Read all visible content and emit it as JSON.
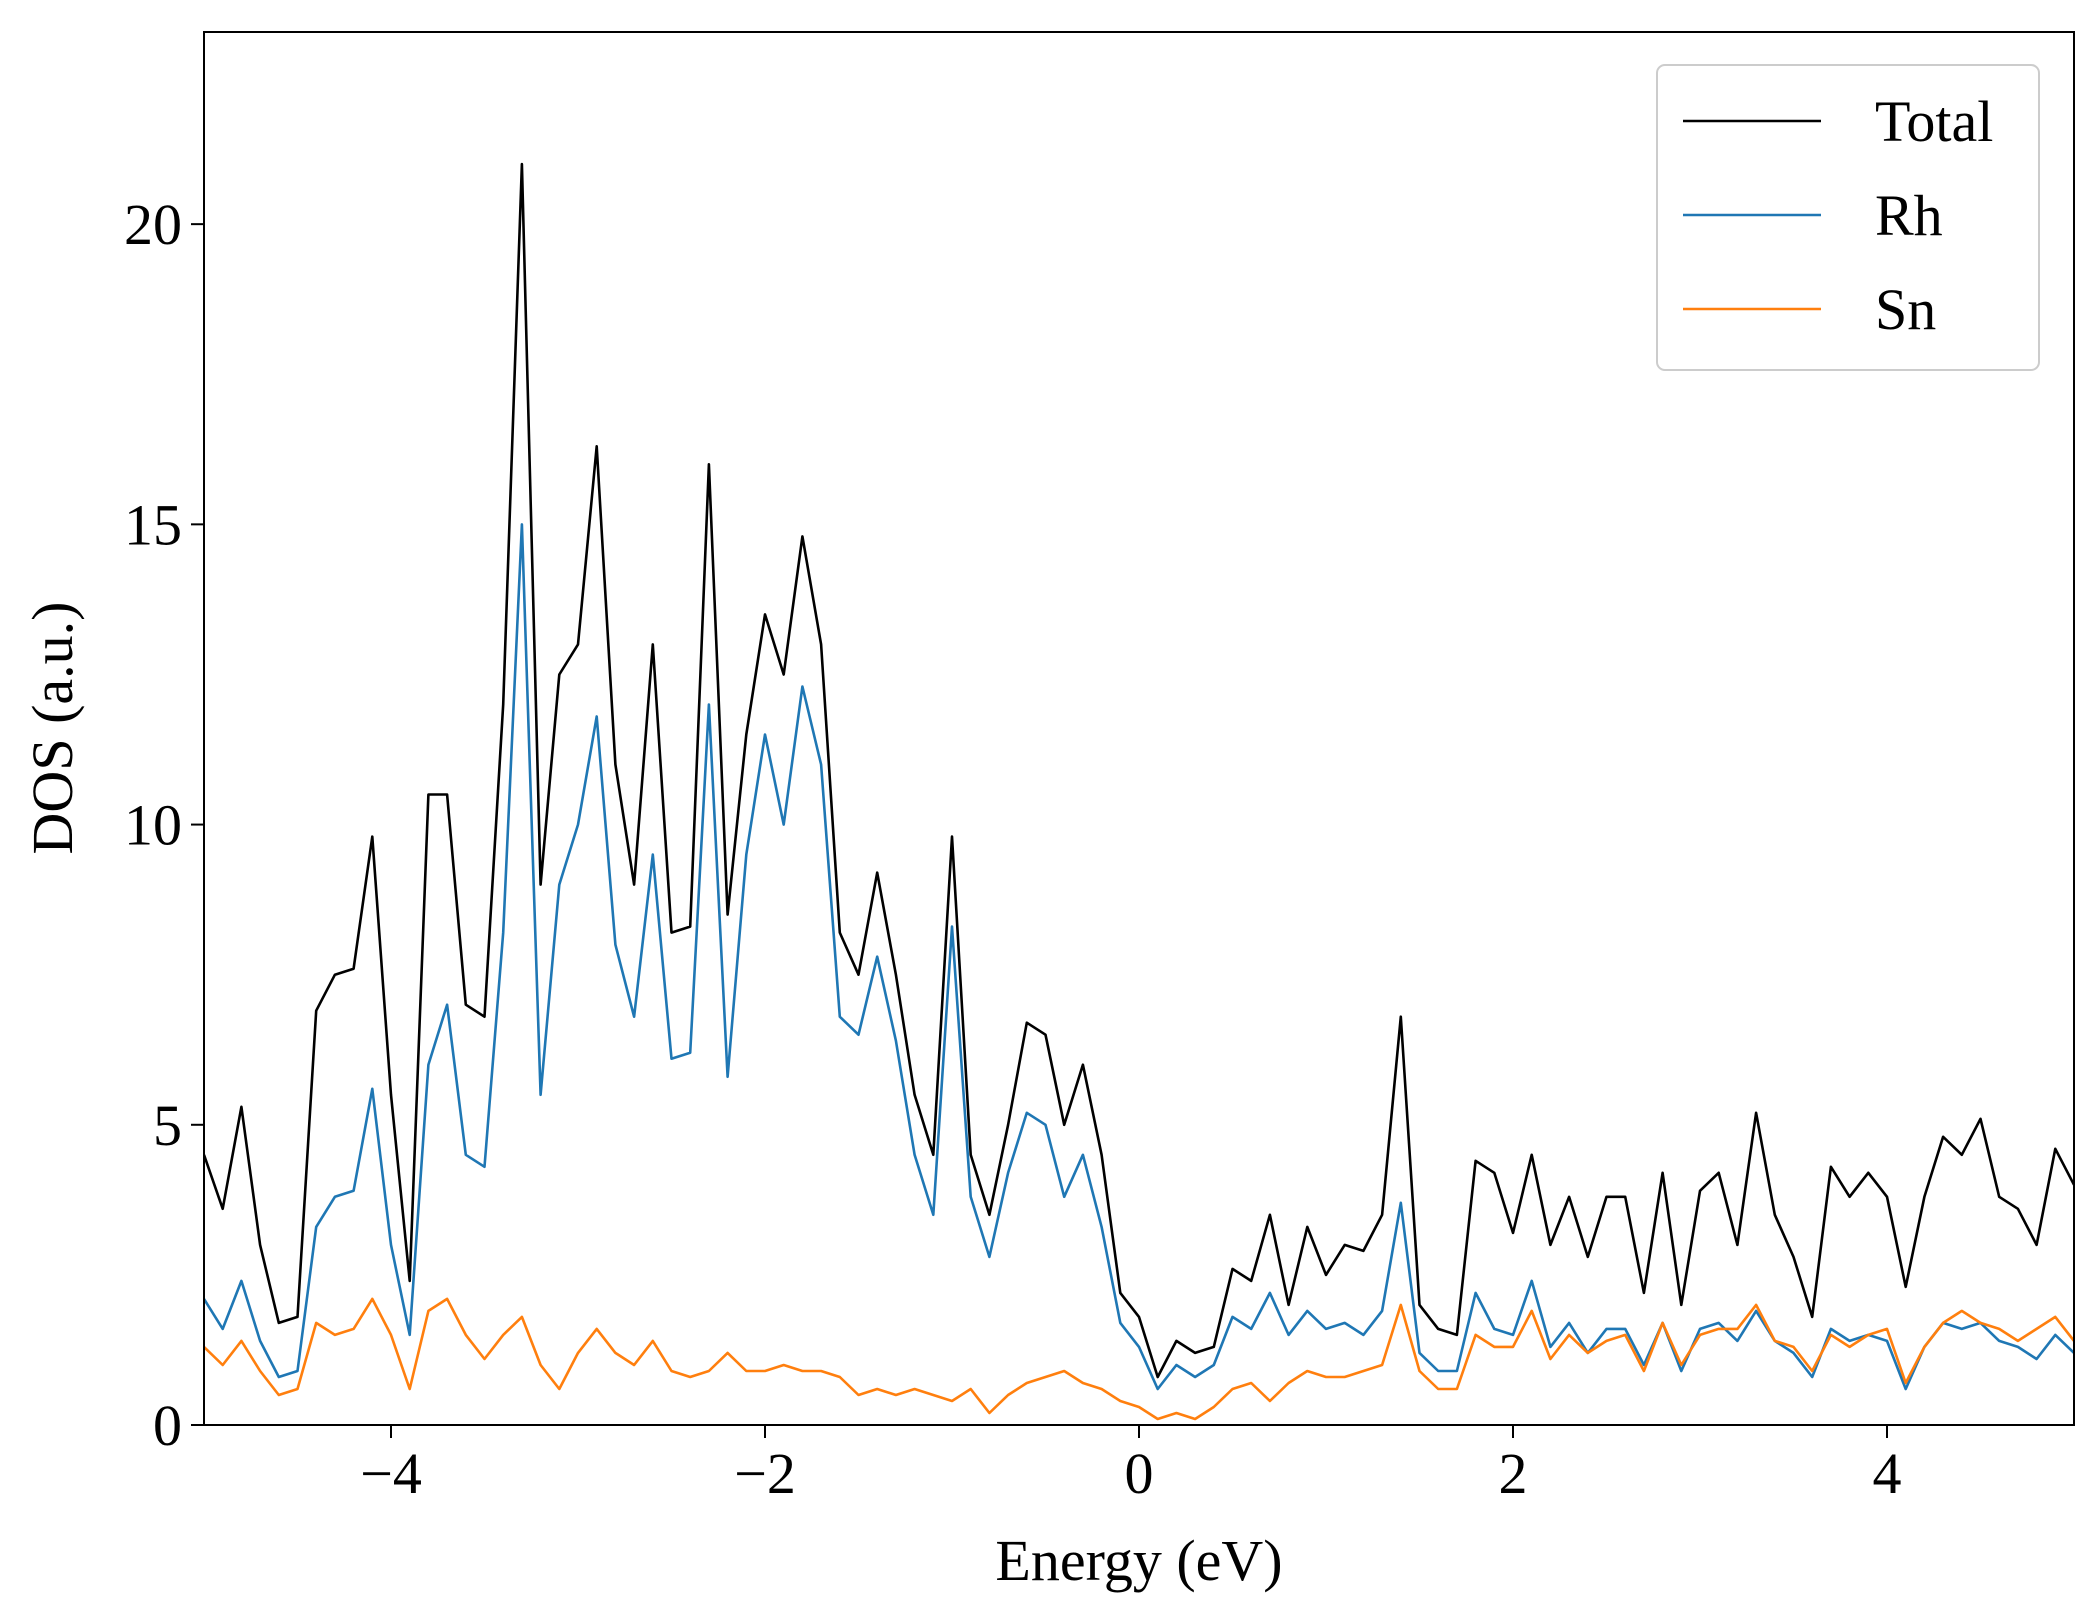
{
  "chart_data": {
    "type": "line",
    "xlabel": "Energy (eV)",
    "ylabel": "DOS (a.u.)",
    "x": [
      -5,
      -4.9,
      -4.8,
      -4.7,
      -4.6,
      -4.5,
      -4.4,
      -4.3,
      -4.2,
      -4.1,
      -4,
      -3.9,
      -3.8,
      -3.7,
      -3.6,
      -3.5,
      -3.4,
      -3.3,
      -3.2,
      -3.1,
      -3,
      -2.9,
      -2.8,
      -2.7,
      -2.6,
      -2.5,
      -2.4,
      -2.3,
      -2.2,
      -2.1,
      -2,
      -1.9,
      -1.8,
      -1.7,
      -1.6,
      -1.5,
      -1.4,
      -1.3,
      -1.2,
      -1.1,
      -1,
      -0.9,
      -0.8,
      -0.7,
      -0.6,
      -0.5,
      -0.4,
      -0.3,
      -0.2,
      -0.1,
      0,
      0.1,
      0.2,
      0.3,
      0.4,
      0.5,
      0.6,
      0.7,
      0.8,
      0.9,
      1,
      1.1,
      1.2,
      1.3,
      1.4,
      1.5,
      1.6,
      1.7,
      1.8,
      1.9,
      2,
      2.1,
      2.2,
      2.3,
      2.4,
      2.5,
      2.6,
      2.7,
      2.8,
      2.9,
      3,
      3.1,
      3.2,
      3.3,
      3.4,
      3.5,
      3.6,
      3.7,
      3.8,
      3.9,
      4,
      4.1,
      4.2,
      4.3,
      4.4,
      4.5,
      4.6,
      4.7,
      4.8,
      4.9,
      5
    ],
    "series": [
      {
        "name": "Total",
        "color": "#000000",
        "values": [
          4.5,
          3.6,
          5.3,
          3.0,
          1.7,
          1.8,
          6.9,
          7.5,
          7.6,
          9.8,
          5.5,
          2.4,
          10.5,
          10.5,
          7.0,
          6.8,
          12.0,
          21.0,
          9.0,
          12.5,
          13.0,
          16.3,
          11.0,
          9.0,
          13.0,
          8.2,
          8.3,
          16.0,
          8.5,
          11.5,
          13.5,
          12.5,
          14.8,
          13.0,
          8.2,
          7.5,
          9.2,
          7.5,
          5.5,
          4.5,
          9.8,
          4.5,
          3.5,
          5.0,
          6.7,
          6.5,
          5.0,
          6.0,
          4.5,
          2.2,
          1.8,
          0.8,
          1.4,
          1.2,
          1.3,
          2.6,
          2.4,
          3.5,
          2.0,
          3.3,
          2.5,
          3.0,
          2.9,
          3.5,
          6.8,
          2.0,
          1.6,
          1.5,
          4.4,
          4.2,
          3.2,
          4.5,
          3.0,
          3.8,
          2.8,
          3.8,
          3.8,
          2.2,
          4.2,
          2.0,
          3.9,
          4.2,
          3.0,
          5.2,
          3.5,
          2.8,
          1.8,
          4.3,
          3.8,
          4.2,
          3.8,
          2.3,
          3.8,
          4.8,
          4.5,
          5.1,
          3.8,
          3.6,
          3.0,
          4.6,
          4.0
        ]
      },
      {
        "name": "Rh",
        "color": "#1f77b4",
        "values": [
          2.1,
          1.6,
          2.4,
          1.4,
          0.8,
          0.9,
          3.3,
          3.8,
          3.9,
          5.6,
          3.0,
          1.5,
          6.0,
          7.0,
          4.5,
          4.3,
          8.2,
          15.0,
          5.5,
          9.0,
          10.0,
          11.8,
          8.0,
          6.8,
          9.5,
          6.1,
          6.2,
          12.0,
          5.8,
          9.5,
          11.5,
          10.0,
          12.3,
          11.0,
          6.8,
          6.5,
          7.8,
          6.4,
          4.5,
          3.5,
          8.3,
          3.8,
          2.8,
          4.2,
          5.2,
          5.0,
          3.8,
          4.5,
          3.3,
          1.7,
          1.3,
          0.6,
          1.0,
          0.8,
          1.0,
          1.8,
          1.6,
          2.2,
          1.5,
          1.9,
          1.6,
          1.7,
          1.5,
          1.9,
          3.7,
          1.2,
          0.9,
          0.9,
          2.2,
          1.6,
          1.5,
          2.4,
          1.3,
          1.7,
          1.2,
          1.6,
          1.6,
          1.0,
          1.7,
          0.9,
          1.6,
          1.7,
          1.4,
          1.9,
          1.4,
          1.2,
          0.8,
          1.6,
          1.4,
          1.5,
          1.4,
          0.6,
          1.3,
          1.7,
          1.6,
          1.7,
          1.4,
          1.3,
          1.1,
          1.5,
          1.2
        ]
      },
      {
        "name": "Sn",
        "color": "#ff7f0e",
        "values": [
          1.3,
          1.0,
          1.4,
          0.9,
          0.5,
          0.6,
          1.7,
          1.5,
          1.6,
          2.1,
          1.5,
          0.6,
          1.9,
          2.1,
          1.5,
          1.1,
          1.5,
          1.8,
          1.0,
          0.6,
          1.2,
          1.6,
          1.2,
          1.0,
          1.4,
          0.9,
          0.8,
          0.9,
          1.2,
          0.9,
          0.9,
          1.0,
          0.9,
          0.9,
          0.8,
          0.5,
          0.6,
          0.5,
          0.6,
          0.5,
          0.4,
          0.6,
          0.2,
          0.5,
          0.7,
          0.8,
          0.9,
          0.7,
          0.6,
          0.4,
          0.3,
          0.1,
          0.2,
          0.1,
          0.3,
          0.6,
          0.7,
          0.4,
          0.7,
          0.9,
          0.8,
          0.8,
          0.9,
          1.0,
          2.0,
          0.9,
          0.6,
          0.6,
          1.5,
          1.3,
          1.3,
          1.9,
          1.1,
          1.5,
          1.2,
          1.4,
          1.5,
          0.9,
          1.7,
          1.0,
          1.5,
          1.6,
          1.6,
          2.0,
          1.4,
          1.3,
          0.9,
          1.5,
          1.3,
          1.5,
          1.6,
          0.7,
          1.3,
          1.7,
          1.9,
          1.7,
          1.6,
          1.4,
          1.6,
          1.8,
          1.4
        ]
      }
    ],
    "xlim": [
      -5,
      5
    ],
    "xticks": [
      {
        "value": -4,
        "label": "−4"
      },
      {
        "value": -2,
        "label": "−2"
      },
      0,
      2,
      4
    ],
    "ylim": [
      0,
      23.2
    ],
    "yticks": [
      0,
      5,
      10,
      15,
      20
    ],
    "grid": false,
    "legend": "upper right"
  }
}
